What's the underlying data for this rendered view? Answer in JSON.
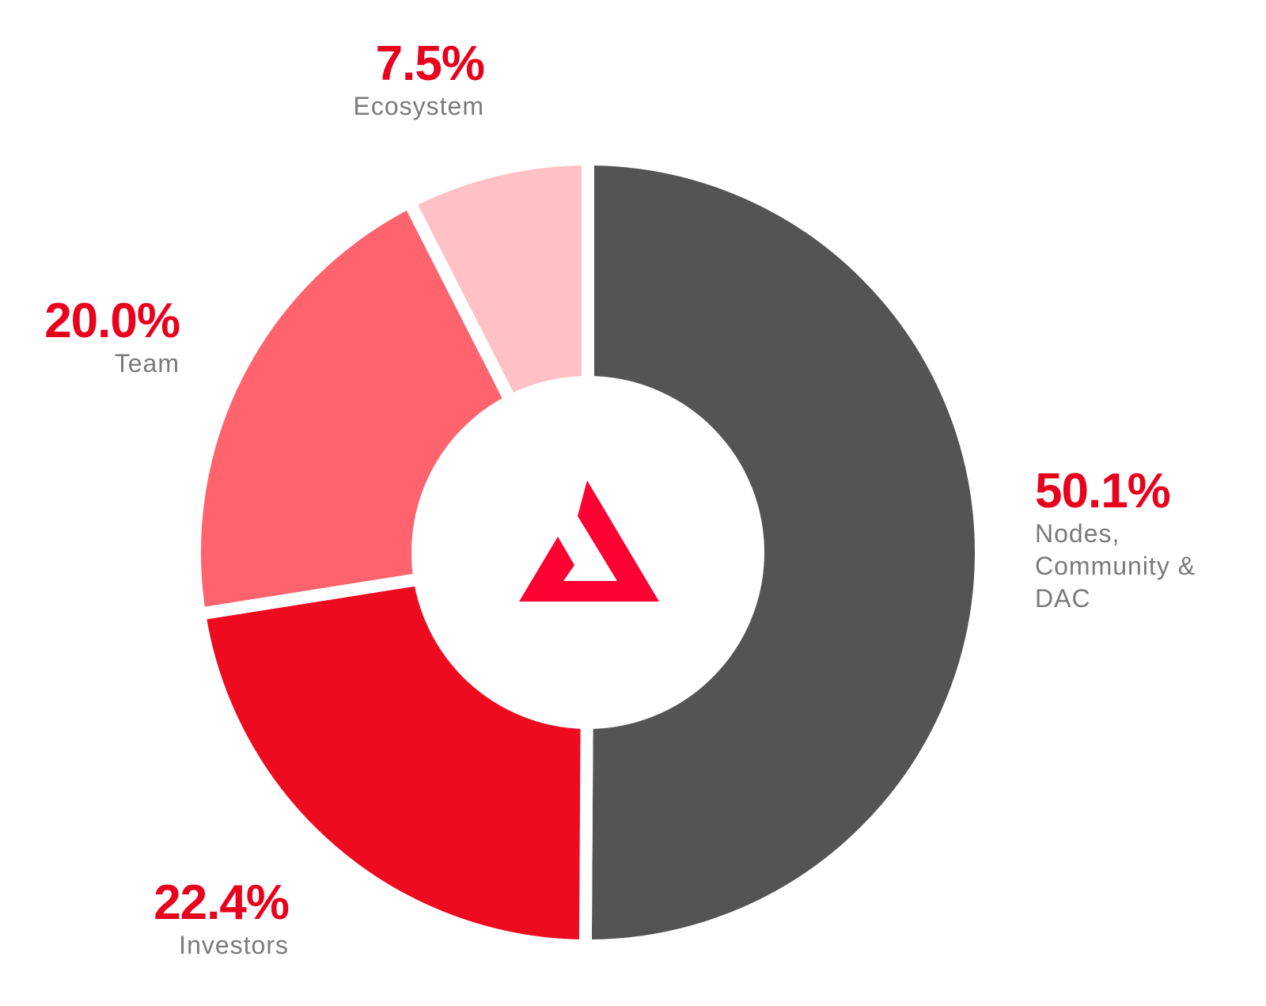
{
  "chart_data": {
    "type": "pie",
    "categories": [
      "Nodes, Community & DAC",
      "Investors",
      "Team",
      "Ecosystem"
    ],
    "values": [
      50.1,
      22.4,
      20.0,
      7.5
    ],
    "value_labels": [
      "50.1%",
      "22.4%",
      "20.0%",
      "7.5%"
    ],
    "colors": [
      "#545454",
      "#ee0a1f",
      "#ff636e",
      "#ffc1c5"
    ]
  }
}
